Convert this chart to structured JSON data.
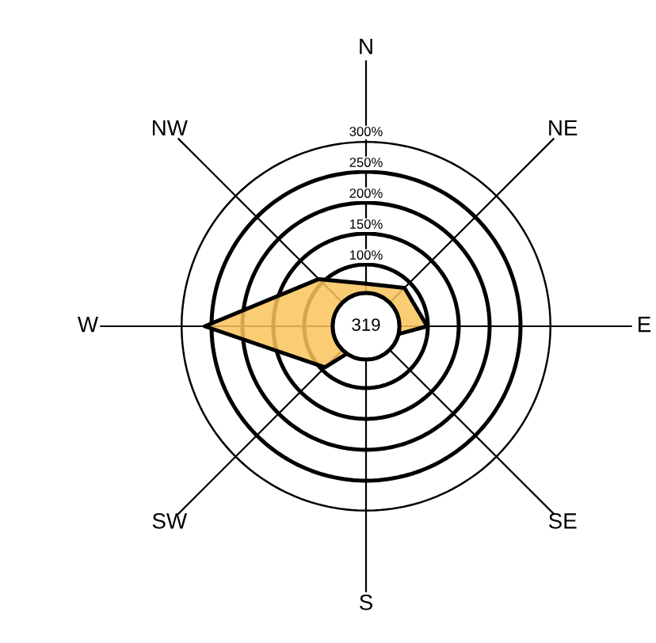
{
  "chart_data": {
    "type": "radar",
    "categories": [
      "N",
      "NE",
      "E",
      "SE",
      "S",
      "SW",
      "W",
      "NW"
    ],
    "series": [
      {
        "color": "#f9c35c",
        "values": [
          69,
          88,
          99,
          30,
          25,
          94,
          261,
          108
        ]
      }
    ],
    "ylim": [
      0,
      300
    ],
    "yticks": [
      {
        "value": 100,
        "label": "100%"
      },
      {
        "value": 150,
        "label": "150%"
      },
      {
        "value": 200,
        "label": "200%"
      },
      {
        "value": 250,
        "label": "250%"
      },
      {
        "value": 300,
        "label": "300%"
      }
    ],
    "grid": true,
    "annotations": [
      "319"
    ]
  }
}
